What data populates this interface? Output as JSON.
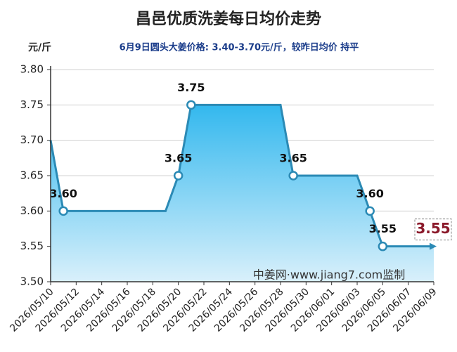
{
  "chart_data": {
    "type": "area-line",
    "title": "昌邑优质洗姜每日均价走势",
    "y_unit": "元/斤",
    "subtitle": "6月9日圆头大姜价格: 3.40-3.70元/斤，较昨日均价 持平",
    "watermark": "中姜网·www.jiang7.com监制",
    "x": [
      "2026/05/10",
      "2026/05/11",
      "2026/05/19",
      "2026/05/20",
      "2026/05/21",
      "2026/05/28",
      "2026/05/29",
      "2026/06/03",
      "2026/06/04",
      "2026/06/05",
      "2026/06/09"
    ],
    "values": [
      3.7,
      3.6,
      3.6,
      3.65,
      3.75,
      3.75,
      3.65,
      3.65,
      3.6,
      3.55,
      3.55
    ],
    "value_labels": [
      null,
      "3.60",
      null,
      "3.65",
      "3.75",
      null,
      "3.65",
      null,
      "3.60",
      "3.55",
      null
    ],
    "color": "#2b8ab5",
    "latest": {
      "value": 3.55,
      "label": "3.55"
    },
    "xlim": [
      "2026/05/10",
      "2026/06/09"
    ],
    "xticks": [
      "2026/05/10",
      "2026/05/12",
      "2026/05/14",
      "2026/05/16",
      "2026/05/18",
      "2026/05/20",
      "2026/05/22",
      "2026/05/24",
      "2026/05/26",
      "2026/05/28",
      "2026/05/30",
      "2026/06/01",
      "2026/06/03",
      "2026/06/05",
      "2026/06/07",
      "2026/06/09"
    ],
    "ylim": [
      3.5,
      3.8
    ],
    "yticks": [
      {
        "value": 3.5,
        "label": "3.50"
      },
      {
        "value": 3.55,
        "label": "3.55"
      },
      {
        "value": 3.6,
        "label": "3.60"
      },
      {
        "value": 3.65,
        "label": "3.65"
      },
      {
        "value": 3.7,
        "label": "3.70"
      },
      {
        "value": 3.75,
        "label": "3.75"
      },
      {
        "value": 3.8,
        "label": "3.80"
      }
    ],
    "grid": true
  }
}
